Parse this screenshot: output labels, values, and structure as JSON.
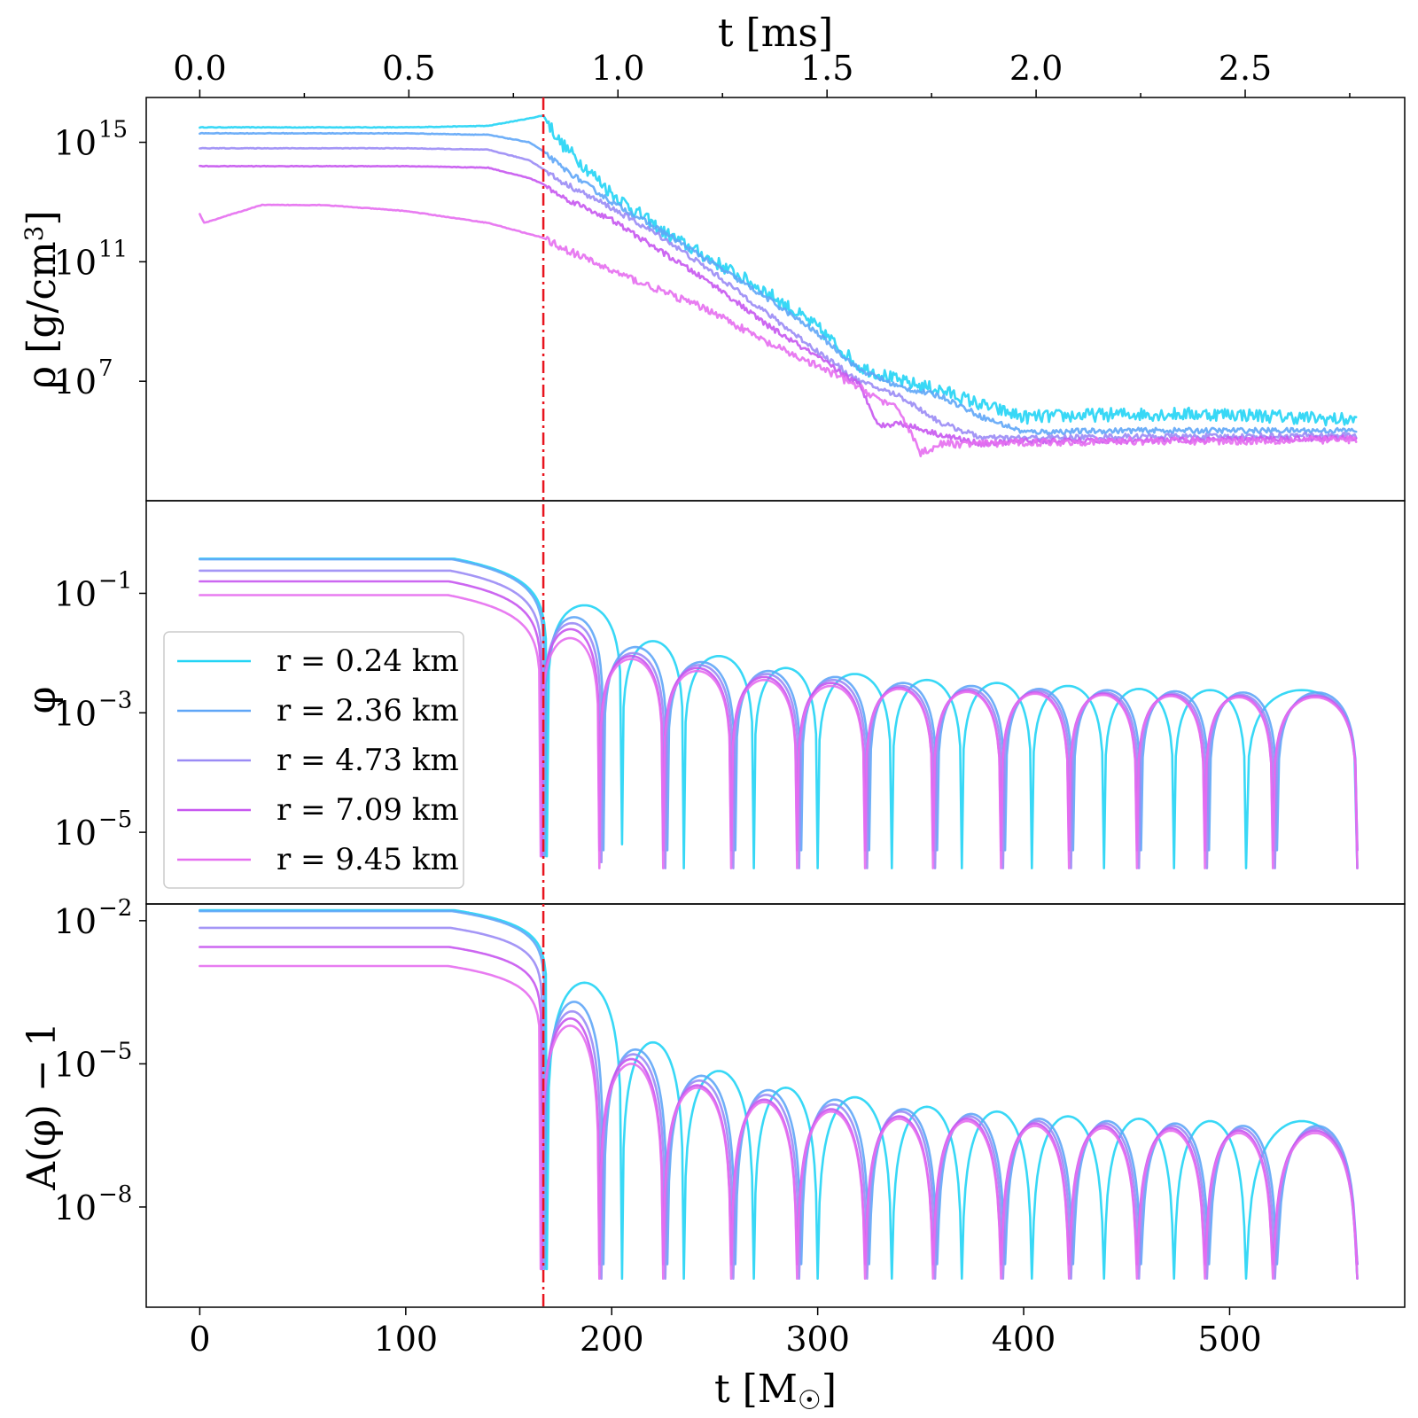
{
  "chart_data": {
    "type": "line",
    "x_axis": {
      "label": "t [M☉]",
      "ticks": [
        0,
        100,
        200,
        300,
        400,
        500
      ],
      "range": [
        -26,
        585
      ]
    },
    "x_top_axis": {
      "label": "t [ms]",
      "ticks": [
        "0.0",
        "0.5",
        "1.0",
        "1.5",
        "2.0",
        "2.5"
      ],
      "tick_values_ms": [
        0.0,
        0.5,
        1.0,
        1.5,
        2.0,
        2.5
      ],
      "ms_per_unit_x": 0.0049256
    },
    "vertical_marker": {
      "x": 166.8,
      "style": "dash-dot",
      "color": "#e8141e"
    },
    "legend": {
      "placement": "middle panel, left",
      "entries": [
        "r = 0.24 km",
        "r = 2.36 km",
        "r = 4.73 km",
        "r = 7.09 km",
        "r = 9.45 km"
      ]
    },
    "series_colors": [
      "#22d4f5",
      "#5fa6f7",
      "#9a8bf5",
      "#c757f0",
      "#e66ef0"
    ],
    "panels": [
      {
        "name": "rho",
        "ylabel": "ρ [g/cm³]",
        "scale": "log",
        "ylim_log10": [
          3.0,
          16.5
        ],
        "ticks": [
          {
            "mantissa": "10",
            "exp": "15"
          },
          {
            "mantissa": "10",
            "exp": "11"
          },
          {
            "mantissa": "10",
            "exp": "7"
          }
        ],
        "tick_log10": [
          15,
          11,
          7
        ],
        "series": [
          {
            "name": "r = 0.24 km",
            "t": [
              0,
              100,
              140,
              160,
              166.8,
              175,
              200,
              225,
              250,
              275,
              300,
              320,
              340,
              360,
              380,
              400,
              450,
              500,
              560
            ],
            "log10": [
              15.5,
              15.5,
              15.55,
              15.8,
              15.9,
              15.0,
              13.3,
              12.0,
              11.0,
              10.0,
              8.8,
              7.5,
              7.0,
              6.7,
              6.2,
              5.8,
              5.9,
              5.9,
              5.7
            ]
          },
          {
            "name": "r = 2.36 km",
            "t": [
              0,
              100,
              140,
              160,
              166.8,
              175,
              200,
              225,
              250,
              275,
              300,
              320,
              340,
              360,
              380,
              400,
              450,
              500,
              560
            ],
            "log10": [
              15.3,
              15.3,
              15.25,
              15.0,
              14.7,
              14.2,
              13.0,
              12.0,
              10.9,
              9.8,
              8.6,
              7.4,
              6.8,
              6.5,
              5.8,
              5.3,
              5.35,
              5.35,
              5.35
            ]
          },
          {
            "name": "r = 4.73 km",
            "t": [
              0,
              100,
              140,
              160,
              166.8,
              175,
              200,
              225,
              250,
              275,
              300,
              320,
              340,
              360,
              380,
              400,
              450,
              500,
              560
            ],
            "log10": [
              14.8,
              14.8,
              14.75,
              14.4,
              14.1,
              13.7,
              12.8,
              11.8,
              10.6,
              9.3,
              8.0,
              7.0,
              6.5,
              5.6,
              5.1,
              5.1,
              5.15,
              5.15,
              5.2
            ]
          },
          {
            "name": "r = 7.09 km",
            "t": [
              0,
              100,
              140,
              160,
              166.8,
              175,
              200,
              225,
              250,
              275,
              300,
              320,
              330,
              340,
              360,
              380,
              400,
              450,
              500,
              560
            ],
            "log10": [
              14.2,
              14.2,
              14.15,
              13.8,
              13.6,
              13.2,
              12.4,
              11.3,
              10.2,
              8.9,
              7.8,
              6.9,
              5.5,
              5.6,
              5.2,
              4.9,
              5.0,
              5.0,
              5.05,
              5.1
            ]
          },
          {
            "name": "r = 9.45 km",
            "t": [
              0,
              2,
              30,
              60,
              100,
              140,
              166.8,
              175,
              200,
              225,
              250,
              275,
              300,
              320,
              340,
              350,
              360,
              380,
              400,
              450,
              500,
              560
            ],
            "log10": [
              12.6,
              12.3,
              12.9,
              12.9,
              12.7,
              12.3,
              11.8,
              11.5,
              10.7,
              10.0,
              9.3,
              8.3,
              7.5,
              6.8,
              6.0,
              4.6,
              4.9,
              4.9,
              4.95,
              5.0,
              5.0,
              5.05
            ]
          }
        ]
      },
      {
        "name": "phi",
        "ylabel": "φ",
        "scale": "log",
        "ylim_log10": [
          -6.2,
          0.55
        ],
        "ticks": [
          {
            "mantissa": "10",
            "exp": "−1"
          },
          {
            "mantissa": "10",
            "exp": "−3"
          },
          {
            "mantissa": "10",
            "exp": "−5"
          }
        ],
        "tick_log10": [
          -1,
          -3,
          -5
        ],
        "series": [
          {
            "name": "r = 0.24 km",
            "initial_log10": -0.42,
            "drop_t": 168.5,
            "zeros": [
              168.5,
              205,
              235,
              269,
              300,
              336,
              370,
              404,
              439,
              473,
              508
            ],
            "peaks_log10": [
              -1.2,
              -1.8,
              -2.05,
              -2.25,
              -2.35,
              -2.45,
              -2.5,
              -2.55,
              -2.6,
              -2.62
            ]
          },
          {
            "name": "r = 2.36 km",
            "initial_log10": -0.43,
            "drop_t": 167.5,
            "zeros": [
              167.5,
              196,
              227,
              260,
              292,
              325,
              358,
              391,
              424,
              457,
              490,
              523
            ],
            "peaks_log10": [
              -1.4,
              -1.9,
              -2.15,
              -2.3,
              -2.4,
              -2.5,
              -2.55,
              -2.6,
              -2.62,
              -2.64,
              -2.66
            ]
          },
          {
            "name": "r = 4.73 km",
            "initial_log10": -0.62,
            "drop_t": 166.5,
            "zeros": [
              166.5,
              195,
              226,
              259,
              291,
              324,
              357,
              390,
              423,
              456,
              489,
              522
            ],
            "peaks_log10": [
              -1.5,
              -2.0,
              -2.2,
              -2.35,
              -2.45,
              -2.55,
              -2.6,
              -2.63,
              -2.66,
              -2.68,
              -2.7
            ]
          },
          {
            "name": "r = 7.09 km",
            "initial_log10": -0.8,
            "drop_t": 166,
            "zeros": [
              166,
              194,
              225,
              258,
              290,
              323,
              356,
              389,
              422,
              455,
              488,
              521
            ],
            "peaks_log10": [
              -1.6,
              -2.05,
              -2.25,
              -2.4,
              -2.5,
              -2.58,
              -2.63,
              -2.66,
              -2.68,
              -2.7,
              -2.72
            ]
          },
          {
            "name": "r = 9.45 km",
            "initial_log10": -1.03,
            "drop_t": 165.5,
            "zeros": [
              165.5,
              194,
              225,
              258,
              290,
              323,
              356,
              389,
              422,
              455,
              488,
              521
            ],
            "peaks_log10": [
              -1.75,
              -2.1,
              -2.3,
              -2.45,
              -2.55,
              -2.6,
              -2.65,
              -2.68,
              -2.7,
              -2.72,
              -2.74
            ]
          }
        ]
      },
      {
        "name": "A",
        "ylabel": "A(φ) − 1",
        "scale": "log",
        "ylim_log10": [
          -10.1,
          -1.65
        ],
        "ticks": [
          {
            "mantissa": "10",
            "exp": "−2"
          },
          {
            "mantissa": "10",
            "exp": "−5"
          },
          {
            "mantissa": "10",
            "exp": "−8"
          }
        ],
        "tick_log10": [
          -2,
          -5,
          -8
        ],
        "series": [
          {
            "name": "r = 0.24 km",
            "initial_log10": -1.78,
            "drop_t": 168.5,
            "zeros": [
              168.5,
              205,
              235,
              269,
              300,
              336,
              370,
              404,
              439,
              473,
              508
            ],
            "peaks_log10": [
              -3.3,
              -4.55,
              -5.15,
              -5.5,
              -5.7,
              -5.9,
              -6.0,
              -6.1,
              -6.15,
              -6.2
            ]
          },
          {
            "name": "r = 2.36 km",
            "initial_log10": -1.8,
            "drop_t": 167.5,
            "zeros": [
              167.5,
              196,
              227,
              260,
              292,
              325,
              358,
              391,
              424,
              457,
              490,
              523
            ],
            "peaks_log10": [
              -3.7,
              -4.7,
              -5.25,
              -5.55,
              -5.75,
              -5.95,
              -6.05,
              -6.15,
              -6.2,
              -6.25,
              -6.3
            ]
          },
          {
            "name": "r = 4.73 km",
            "initial_log10": -2.15,
            "drop_t": 166.5,
            "zeros": [
              166.5,
              195,
              226,
              259,
              291,
              324,
              357,
              390,
              423,
              456,
              489,
              522
            ],
            "peaks_log10": [
              -3.9,
              -4.8,
              -5.35,
              -5.65,
              -5.85,
              -6.0,
              -6.1,
              -6.2,
              -6.25,
              -6.3,
              -6.35
            ]
          },
          {
            "name": "r = 7.09 km",
            "initial_log10": -2.55,
            "drop_t": 166,
            "zeros": [
              166,
              194,
              225,
              258,
              290,
              323,
              356,
              389,
              422,
              455,
              488,
              521
            ],
            "peaks_log10": [
              -4.05,
              -4.9,
              -5.45,
              -5.75,
              -5.95,
              -6.1,
              -6.15,
              -6.25,
              -6.3,
              -6.35,
              -6.4
            ]
          },
          {
            "name": "r = 9.45 km",
            "initial_log10": -2.95,
            "drop_t": 165.5,
            "zeros": [
              165.5,
              194,
              225,
              258,
              290,
              323,
              356,
              389,
              422,
              455,
              488,
              521
            ],
            "peaks_log10": [
              -4.2,
              -5.0,
              -5.5,
              -5.8,
              -6.0,
              -6.15,
              -6.2,
              -6.3,
              -6.35,
              -6.4,
              -6.45
            ]
          }
        ]
      }
    ]
  }
}
